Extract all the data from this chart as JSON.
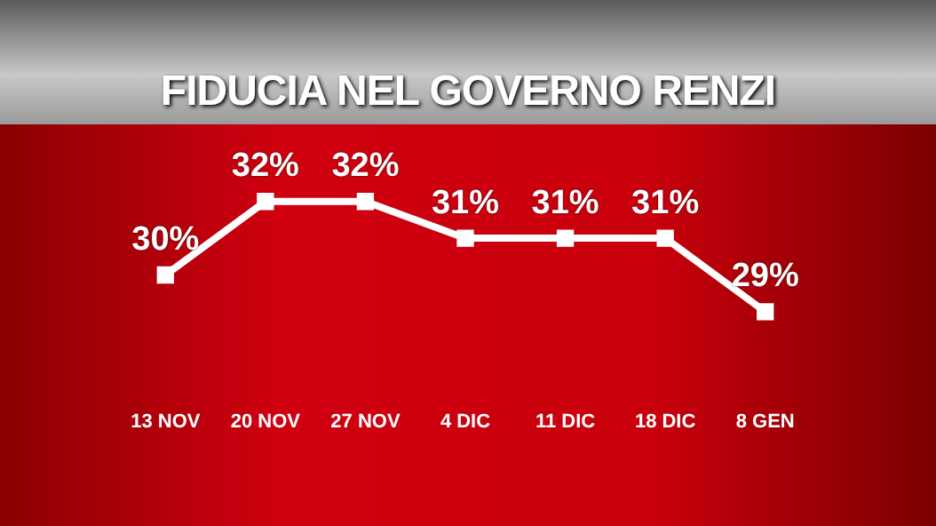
{
  "chart_data": {
    "type": "line",
    "title": "FIDUCIA NEL GOVERNO RENZI",
    "categories": [
      "13 NOV",
      "20 NOV",
      "27 NOV",
      "4 DIC",
      "11 DIC",
      "18 DIC",
      "8 GEN"
    ],
    "series": [
      {
        "color": "#ffffff",
        "values": [
          30,
          32,
          32,
          31,
          31,
          31,
          29
        ],
        "value_labels": [
          "30%",
          "32%",
          "32%",
          "31%",
          "31%",
          "31%",
          "29%"
        ]
      }
    ],
    "marker": "square",
    "line_style": "solid",
    "grid": false,
    "legend": false
  }
}
